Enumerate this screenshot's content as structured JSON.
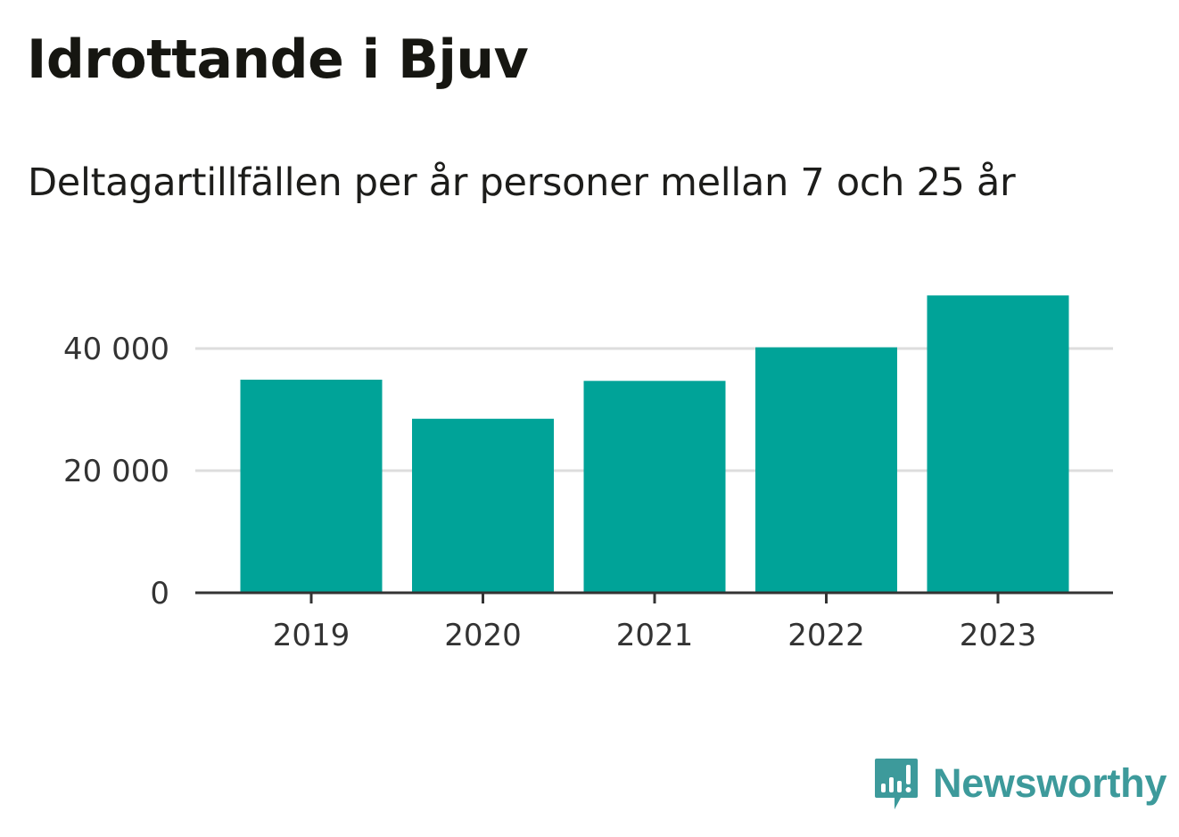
{
  "header": {
    "title": "Idrottande i Bjuv",
    "subtitle": "Deltagartillfällen per år personer mellan 7 och 25 år"
  },
  "colors": {
    "bar": "#00a398",
    "brand": "#3d9a9b",
    "gridline": "#dddddd",
    "axis": "#333333"
  },
  "chart_data": {
    "type": "bar",
    "title": "Idrottande i Bjuv",
    "subtitle": "Deltagartillfällen per år personer mellan 7 och 25 år",
    "xlabel": "",
    "ylabel": "",
    "categories": [
      "2019",
      "2020",
      "2021",
      "2022",
      "2023"
    ],
    "values": [
      34900,
      28500,
      34700,
      40200,
      48700
    ],
    "ylim": [
      0,
      52000
    ],
    "yticks": [
      0,
      20000,
      40000
    ],
    "ytick_labels": [
      "0",
      "20 000",
      "40 000"
    ],
    "grid": true,
    "legend": "none"
  },
  "brand": {
    "icon": "newsworthy-logo-icon",
    "name": "Newsworthy"
  }
}
